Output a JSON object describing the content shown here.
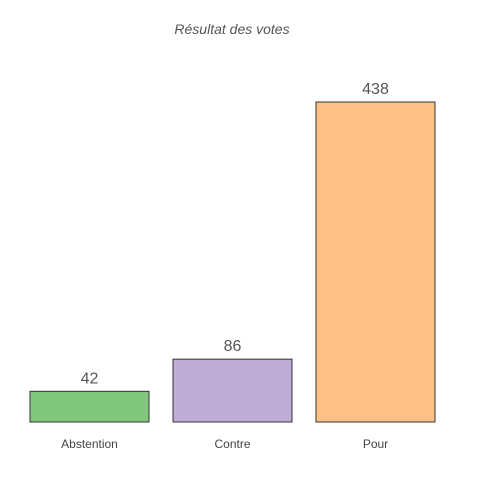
{
  "chart_data": {
    "type": "bar",
    "title": "Résultat des votes",
    "categories": [
      "Abstention",
      "Contre",
      "Pour"
    ],
    "values": [
      42,
      86,
      438
    ],
    "colors": [
      "#80c97c",
      "#beadd4",
      "#fdc086"
    ],
    "ylim": [
      0,
      438
    ],
    "grid": false,
    "legend": "none"
  }
}
